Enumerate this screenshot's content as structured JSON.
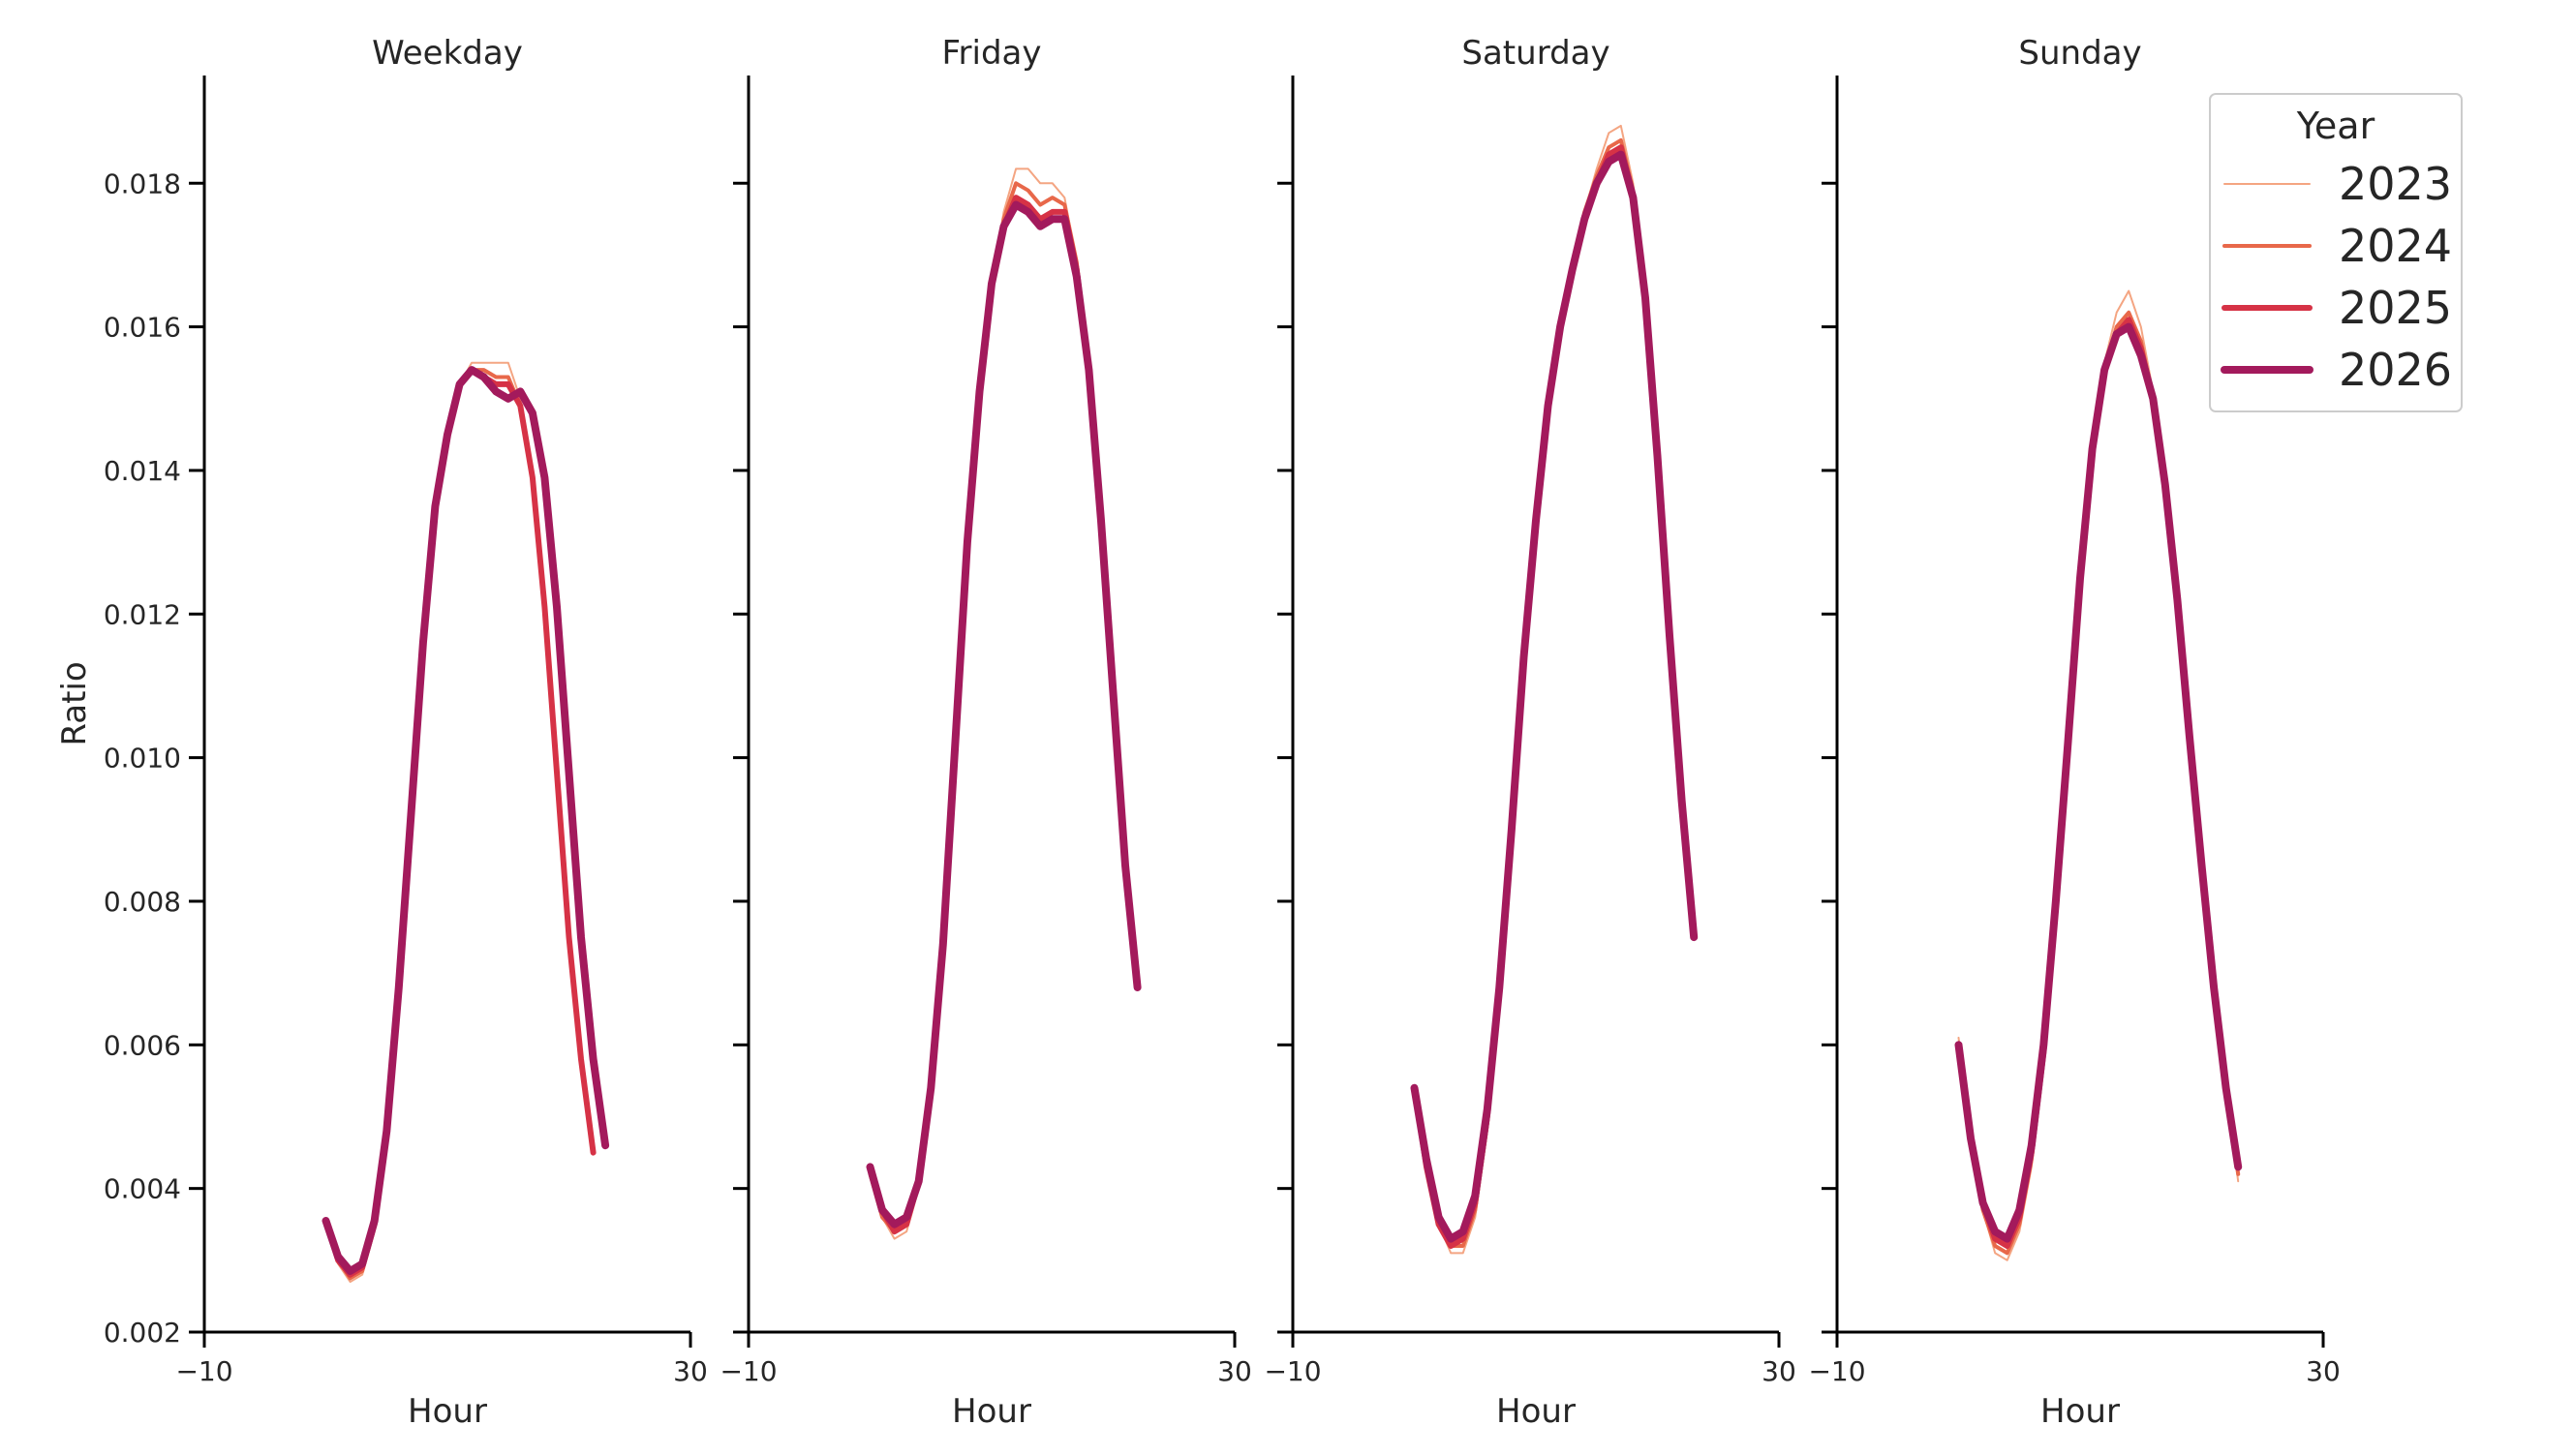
{
  "chart_data": {
    "type": "line",
    "panels": [
      "Weekday",
      "Friday",
      "Saturday",
      "Sunday"
    ],
    "xlabel": "Hour",
    "ylabel": "Ratio",
    "xlim": [
      -10,
      30
    ],
    "ylim": [
      0.002,
      0.0195
    ],
    "xticks": [
      "−10",
      "30"
    ],
    "yticks": [
      "0.002",
      "0.004",
      "0.006",
      "0.008",
      "0.010",
      "0.012",
      "0.014",
      "0.016",
      "0.018"
    ],
    "ytick_values": [
      0.002,
      0.004,
      0.006,
      0.008,
      0.01,
      0.012,
      0.014,
      0.016,
      0.018
    ],
    "grid": false,
    "legend": {
      "title": "Year",
      "placement": "top-right",
      "entries": [
        {
          "label": "2023",
          "color": "#f4a582"
        },
        {
          "label": "2024",
          "color": "#e8684a"
        },
        {
          "label": "2025",
          "color": "#d63246"
        },
        {
          "label": "2026",
          "color": "#a31a5c"
        }
      ]
    },
    "x": [
      0,
      1,
      2,
      3,
      4,
      5,
      6,
      7,
      8,
      9,
      10,
      11,
      12,
      13,
      14,
      15,
      16,
      17,
      18,
      19,
      20,
      21,
      22,
      23
    ],
    "series": [
      {
        "name": "2023",
        "color": "#f4a582",
        "width": 2,
        "values": {
          "Weekday": [
            0.00355,
            0.00295,
            0.0027,
            0.0028,
            0.0034,
            0.0047,
            0.0068,
            0.0092,
            0.0116,
            0.0135,
            0.0145,
            0.0152,
            0.0155,
            0.0155,
            0.0155,
            0.0155,
            0.015,
            0.014,
            0.0122,
            0.0099,
            0.0075,
            0.0058,
            0.0045,
            null
          ],
          "Friday": [
            0.0042,
            0.0036,
            0.0033,
            0.0034,
            0.004,
            0.0053,
            0.0074,
            0.0102,
            0.013,
            0.0151,
            0.0166,
            0.0176,
            0.0182,
            0.0182,
            0.018,
            0.018,
            0.0178,
            0.0169,
            0.0154,
            0.0133,
            0.0109,
            0.0085,
            0.0068,
            null
          ],
          "Saturday": [
            0.0053,
            0.0043,
            0.0035,
            0.0031,
            0.0031,
            0.0036,
            0.0048,
            0.0066,
            0.0089,
            0.0113,
            0.0133,
            0.0149,
            0.0161,
            0.0169,
            0.0176,
            0.0182,
            0.0187,
            0.0188,
            0.018,
            0.0165,
            0.0142,
            0.0117,
            0.0094,
            0.0075
          ],
          "Sunday": [
            0.0061,
            0.0047,
            0.0037,
            0.0031,
            0.003,
            0.0034,
            0.0043,
            0.0058,
            0.0078,
            0.0102,
            0.0125,
            0.0143,
            0.0155,
            0.0162,
            0.0165,
            0.016,
            0.0151,
            0.0139,
            0.0123,
            0.0104,
            0.0085,
            0.0068,
            0.0054,
            0.0041
          ]
        }
      },
      {
        "name": "2024",
        "color": "#e8684a",
        "width": 4,
        "values": {
          "Weekday": [
            0.00355,
            0.003,
            0.00275,
            0.00285,
            0.0035,
            0.0048,
            0.0068,
            0.0092,
            0.0116,
            0.0135,
            0.0145,
            0.0152,
            0.0154,
            0.0154,
            0.0153,
            0.0153,
            0.0149,
            0.0139,
            0.0121,
            0.0098,
            0.0075,
            0.0058,
            0.0045,
            null
          ],
          "Friday": [
            0.0042,
            0.0036,
            0.0034,
            0.0035,
            0.0041,
            0.0053,
            0.0074,
            0.0102,
            0.013,
            0.0151,
            0.0166,
            0.0175,
            0.018,
            0.0179,
            0.0177,
            0.0178,
            0.0177,
            0.0169,
            0.0154,
            0.0133,
            0.0109,
            0.0085,
            0.0068,
            null
          ],
          "Saturday": [
            0.0053,
            0.0043,
            0.0035,
            0.0032,
            0.0032,
            0.0037,
            0.0049,
            0.0067,
            0.009,
            0.0113,
            0.0133,
            0.0149,
            0.0161,
            0.0169,
            0.0176,
            0.0181,
            0.0185,
            0.0186,
            0.0179,
            0.0164,
            0.0142,
            0.0117,
            0.0094,
            0.0075
          ],
          "Sunday": [
            0.006,
            0.0047,
            0.0037,
            0.0032,
            0.0031,
            0.0035,
            0.0044,
            0.0058,
            0.0078,
            0.0102,
            0.0125,
            0.0143,
            0.0154,
            0.016,
            0.0162,
            0.0158,
            0.015,
            0.0138,
            0.0122,
            0.0103,
            0.0085,
            0.0068,
            0.0054,
            0.0042
          ]
        }
      },
      {
        "name": "2025",
        "color": "#d63246",
        "width": 6,
        "values": {
          "Weekday": [
            0.00355,
            0.003,
            0.0028,
            0.0029,
            0.0035,
            0.0048,
            0.0068,
            0.0092,
            0.0116,
            0.0135,
            0.0145,
            0.0152,
            0.0154,
            0.0153,
            0.0152,
            0.0152,
            0.0149,
            0.0139,
            0.0121,
            0.0098,
            0.0075,
            0.0058,
            0.0045,
            null
          ],
          "Friday": [
            0.0043,
            0.0037,
            0.0034,
            0.0035,
            0.0041,
            0.0054,
            0.0074,
            0.0102,
            0.013,
            0.0151,
            0.0166,
            0.0174,
            0.0178,
            0.0177,
            0.0175,
            0.0176,
            0.0176,
            0.0168,
            0.0154,
            0.0133,
            0.0109,
            0.0085,
            0.0068,
            null
          ],
          "Saturday": [
            0.0054,
            0.0043,
            0.0035,
            0.0032,
            0.0033,
            0.0038,
            0.005,
            0.0068,
            0.009,
            0.0114,
            0.0133,
            0.0149,
            0.016,
            0.0168,
            0.0175,
            0.018,
            0.0184,
            0.0185,
            0.0178,
            0.0164,
            0.0142,
            0.0117,
            0.0094,
            0.0075
          ],
          "Sunday": [
            0.006,
            0.0047,
            0.0038,
            0.0033,
            0.0032,
            0.0036,
            0.0045,
            0.0059,
            0.0079,
            0.0102,
            0.0125,
            0.0143,
            0.0154,
            0.0159,
            0.0161,
            0.0157,
            0.015,
            0.0138,
            0.0122,
            0.0103,
            0.0085,
            0.0068,
            0.0054,
            0.0043
          ]
        }
      },
      {
        "name": "2026",
        "color": "#a31a5c",
        "width": 8,
        "values": {
          "Weekday": [
            0.00355,
            0.00305,
            0.00285,
            0.00295,
            0.00355,
            0.0048,
            0.0068,
            0.0092,
            0.0116,
            0.0135,
            0.0145,
            0.0152,
            0.0154,
            0.0153,
            0.0151,
            0.015,
            0.0151,
            0.0148,
            0.0139,
            0.0121,
            0.0098,
            0.0075,
            0.0058,
            0.0046
          ],
          "Friday": [
            0.0043,
            0.0037,
            0.0035,
            0.0036,
            0.0041,
            0.0054,
            0.0074,
            0.0102,
            0.013,
            0.0151,
            0.0166,
            0.0174,
            0.0177,
            0.0176,
            0.0174,
            0.0175,
            0.0175,
            0.0167,
            0.0154,
            0.0133,
            0.0109,
            0.0085,
            0.0068,
            null
          ],
          "Saturday": [
            0.0054,
            0.0044,
            0.0036,
            0.0033,
            0.0034,
            0.0039,
            0.0051,
            0.0068,
            0.009,
            0.0114,
            0.0133,
            0.0149,
            0.016,
            0.0168,
            0.0175,
            0.018,
            0.0183,
            0.0184,
            0.0178,
            0.0164,
            0.0142,
            0.0117,
            0.0094,
            0.0075
          ],
          "Sunday": [
            0.006,
            0.0047,
            0.0038,
            0.0034,
            0.0033,
            0.0037,
            0.0046,
            0.006,
            0.008,
            0.0102,
            0.0125,
            0.0143,
            0.0154,
            0.0159,
            0.016,
            0.0156,
            0.015,
            0.0138,
            0.0122,
            0.0103,
            0.0085,
            0.0068,
            0.0054,
            0.0043
          ]
        }
      }
    ]
  }
}
